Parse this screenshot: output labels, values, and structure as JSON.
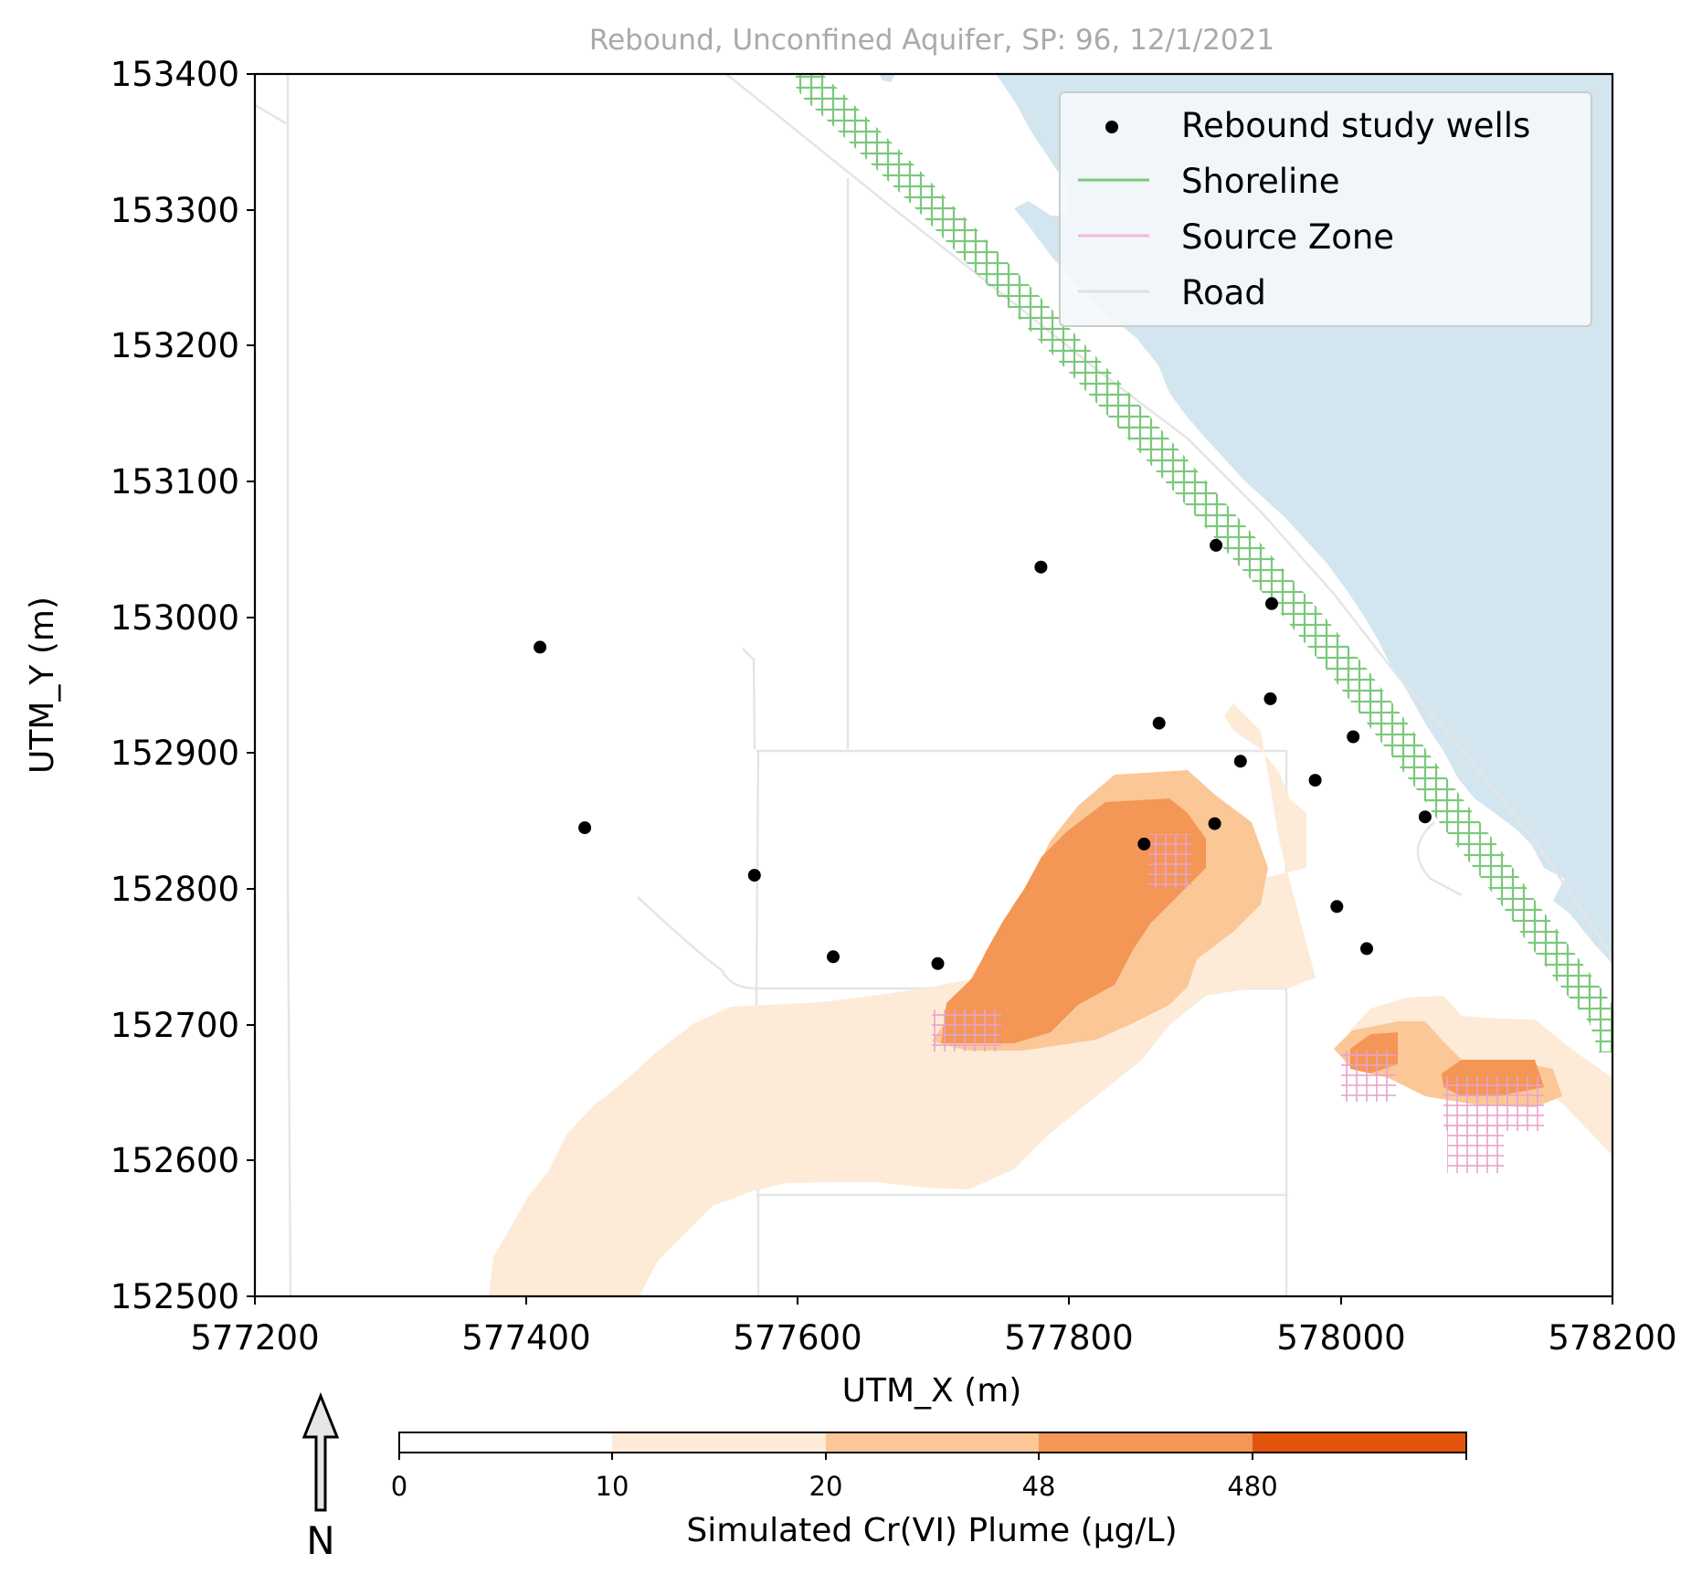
{
  "title": "Rebound, Unconfined Aquifer, SP: 96, 12/1/2021",
  "axes": {
    "xlabel": "UTM_X (m)",
    "ylabel": "UTM_Y (m)",
    "xlim": [
      577200,
      578200
    ],
    "ylim": [
      152500,
      153400
    ],
    "xticks": [
      "577200",
      "577400",
      "577600",
      "577800",
      "578000",
      "578200"
    ],
    "yticks": [
      "152500",
      "152600",
      "152700",
      "152800",
      "152900",
      "153000",
      "153100",
      "153200",
      "153300",
      "153400"
    ]
  },
  "legend": {
    "placement": "top-right",
    "entries": [
      {
        "label": "Rebound study wells",
        "marker": "dot",
        "color": "#000000"
      },
      {
        "label": "Shoreline",
        "marker": "line",
        "color": "#7bc87b"
      },
      {
        "label": "Source Zone",
        "marker": "line",
        "color": "#f2b8d6"
      },
      {
        "label": "Road",
        "marker": "line",
        "color": "#e8e8e8"
      }
    ]
  },
  "colorbar": {
    "label": "Simulated Cr(VI) Plume (μg/L)",
    "ticks": [
      "0",
      "10",
      "20",
      "48",
      "480"
    ],
    "colors": [
      "#ffffff",
      "#fdebd8",
      "#fbc797",
      "#f49656",
      "#e3540c"
    ]
  },
  "north_arrow": {
    "label": "N",
    "icon": "north-arrow-icon"
  },
  "colors": {
    "water": "#d3e6ef",
    "shoreline": "#7bc87b",
    "source_zone": "#f2b8d6",
    "road": "#e8e8e8",
    "wells": "#000000"
  },
  "chart_data": {
    "type": "scatter",
    "series": [
      {
        "name": "Rebound study wells",
        "points": [
          [
            577410,
            152978
          ],
          [
            577443,
            152845
          ],
          [
            577568,
            152810
          ],
          [
            577626,
            152750
          ],
          [
            577703,
            152745
          ],
          [
            577779,
            153037
          ],
          [
            577855,
            152833
          ],
          [
            577866,
            152922
          ],
          [
            577907,
            152848
          ],
          [
            577908,
            153053
          ],
          [
            577926,
            152894
          ],
          [
            577949,
            153010
          ],
          [
            577948,
            152940
          ],
          [
            577981,
            152880
          ],
          [
            577997,
            152787
          ],
          [
            578009,
            152912
          ],
          [
            578019,
            152756
          ],
          [
            578062,
            152853
          ]
        ]
      }
    ]
  }
}
